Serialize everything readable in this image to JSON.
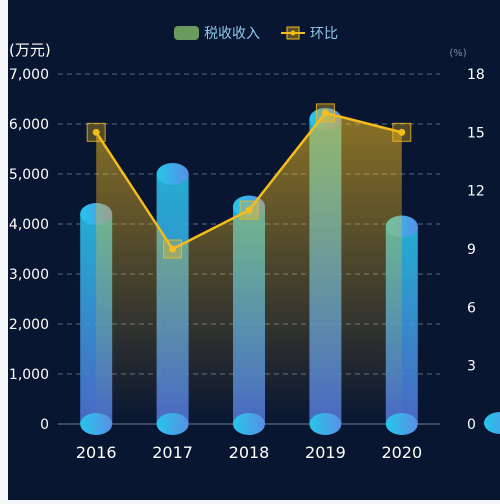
{
  "chart_data": {
    "type": "bar",
    "categories": [
      "2016",
      "2017",
      "2018",
      "2019",
      "2020"
    ],
    "series": [
      {
        "name": "税收收入",
        "type": "bar",
        "axis": "left",
        "values": [
          4200,
          5000,
          4350,
          6100,
          3950
        ]
      },
      {
        "name": "环比",
        "type": "line",
        "axis": "right",
        "values": [
          15.0,
          9.0,
          11.0,
          16.0,
          15.0
        ]
      }
    ],
    "left_axis": {
      "label": "(万元)",
      "ylim": [
        0,
        7000
      ],
      "ticks": [
        "0",
        "1,000",
        "2,000",
        "3,000",
        "4,000",
        "5,000",
        "6,000",
        "7,000"
      ]
    },
    "right_axis": {
      "label": "(%)",
      "ylim": [
        0,
        18
      ],
      "ticks": [
        "0",
        "3",
        "6",
        "9",
        "12",
        "15",
        "18"
      ]
    },
    "legend_position": "top-center",
    "grid": true
  },
  "colors": {
    "background": "#081632",
    "bar_top": "#28c1e6",
    "bar_bottom": "#5173d8",
    "line": "#f5bd1b",
    "legend_bar": "#6a9a5e",
    "text": "#ffffff",
    "legend_text": "#8ec8ea",
    "grid": "#5a6c86"
  }
}
